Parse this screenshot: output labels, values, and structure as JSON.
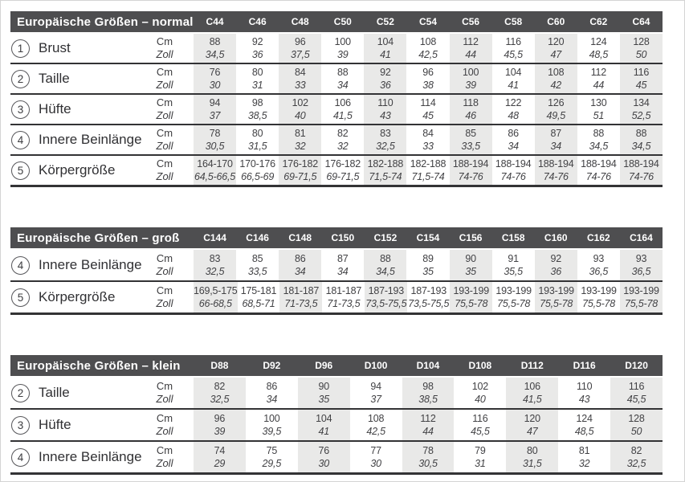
{
  "colors": {
    "header_bg": "#4e4e50",
    "stripe": "#e9e9e8",
    "line": "#333335",
    "text": "#3c3c3f"
  },
  "units": {
    "cm": "Cm",
    "zoll": "Zoll"
  },
  "tables": [
    {
      "id": "normal",
      "title": "Europäische Größen – normal",
      "columns": [
        "C44",
        "C46",
        "C48",
        "C50",
        "C52",
        "C54",
        "C56",
        "C58",
        "C60",
        "C62",
        "C64"
      ],
      "rows": [
        {
          "num": "1",
          "label": "Brust",
          "cm": [
            "88",
            "92",
            "96",
            "100",
            "104",
            "108",
            "112",
            "116",
            "120",
            "124",
            "128"
          ],
          "zoll": [
            "34,5",
            "36",
            "37,5",
            "39",
            "41",
            "42,5",
            "44",
            "45,5",
            "47",
            "48,5",
            "50"
          ]
        },
        {
          "num": "2",
          "label": "Taille",
          "cm": [
            "76",
            "80",
            "84",
            "88",
            "92",
            "96",
            "100",
            "104",
            "108",
            "112",
            "116"
          ],
          "zoll": [
            "30",
            "31",
            "33",
            "34",
            "36",
            "38",
            "39",
            "41",
            "42",
            "44",
            "45"
          ]
        },
        {
          "num": "3",
          "label": "Hüfte",
          "cm": [
            "94",
            "98",
            "102",
            "106",
            "110",
            "114",
            "118",
            "122",
            "126",
            "130",
            "134"
          ],
          "zoll": [
            "37",
            "38,5",
            "40",
            "41,5",
            "43",
            "45",
            "46",
            "48",
            "49,5",
            "51",
            "52,5"
          ]
        },
        {
          "num": "4",
          "label": "Innere Beinlänge",
          "cm": [
            "78",
            "80",
            "81",
            "82",
            "83",
            "84",
            "85",
            "86",
            "87",
            "88",
            "88"
          ],
          "zoll": [
            "30,5",
            "31,5",
            "32",
            "32",
            "32,5",
            "33",
            "33,5",
            "34",
            "34",
            "34,5",
            "34,5"
          ]
        },
        {
          "num": "5",
          "label": "Körpergröße",
          "cm": [
            "164-170",
            "170-176",
            "176-182",
            "176-182",
            "182-188",
            "182-188",
            "188-194",
            "188-194",
            "188-194",
            "188-194",
            "188-194"
          ],
          "zoll": [
            "64,5-66,5",
            "66,5-69",
            "69-71,5",
            "69-71,5",
            "71,5-74",
            "71,5-74",
            "74-76",
            "74-76",
            "74-76",
            "74-76",
            "74-76"
          ]
        }
      ]
    },
    {
      "id": "gross",
      "title": "Europäische Größen – groß",
      "columns": [
        "C144",
        "C146",
        "C148",
        "C150",
        "C152",
        "C154",
        "C156",
        "C158",
        "C160",
        "C162",
        "C164"
      ],
      "rows": [
        {
          "num": "4",
          "label": "Innere Beinlänge",
          "cm": [
            "83",
            "85",
            "86",
            "87",
            "88",
            "89",
            "90",
            "91",
            "92",
            "93",
            "93"
          ],
          "zoll": [
            "32,5",
            "33,5",
            "34",
            "34",
            "34,5",
            "35",
            "35",
            "35,5",
            "36",
            "36,5",
            "36,5"
          ]
        },
        {
          "num": "5",
          "label": "Körpergröße",
          "cm": [
            "169,5-175",
            "175-181",
            "181-187",
            "181-187",
            "187-193",
            "187-193",
            "193-199",
            "193-199",
            "193-199",
            "193-199",
            "193-199"
          ],
          "zoll": [
            "66-68,5",
            "68,5-71",
            "71-73,5",
            "71-73,5",
            "73,5-75,5",
            "73,5-75,5",
            "75,5-78",
            "75,5-78",
            "75,5-78",
            "75,5-78",
            "75,5-78"
          ]
        }
      ]
    },
    {
      "id": "klein",
      "title": "Europäische Größen – klein",
      "columns": [
        "D88",
        "D92",
        "D96",
        "D100",
        "D104",
        "D108",
        "D112",
        "D116",
        "D120"
      ],
      "rows": [
        {
          "num": "2",
          "label": "Taille",
          "cm": [
            "82",
            "86",
            "90",
            "94",
            "98",
            "102",
            "106",
            "110",
            "116"
          ],
          "zoll": [
            "32,5",
            "34",
            "35",
            "37",
            "38,5",
            "40",
            "41,5",
            "43",
            "45,5"
          ]
        },
        {
          "num": "3",
          "label": "Hüfte",
          "cm": [
            "96",
            "100",
            "104",
            "108",
            "112",
            "116",
            "120",
            "124",
            "128"
          ],
          "zoll": [
            "39",
            "39,5",
            "41",
            "42,5",
            "44",
            "45,5",
            "47",
            "48,5",
            "50"
          ]
        },
        {
          "num": "4",
          "label": "Innere Beinlänge",
          "cm": [
            "74",
            "75",
            "76",
            "77",
            "78",
            "79",
            "80",
            "81",
            "82"
          ],
          "zoll": [
            "29",
            "29,5",
            "30",
            "30",
            "30,5",
            "31",
            "31,5",
            "32",
            "32,5"
          ]
        }
      ]
    }
  ]
}
